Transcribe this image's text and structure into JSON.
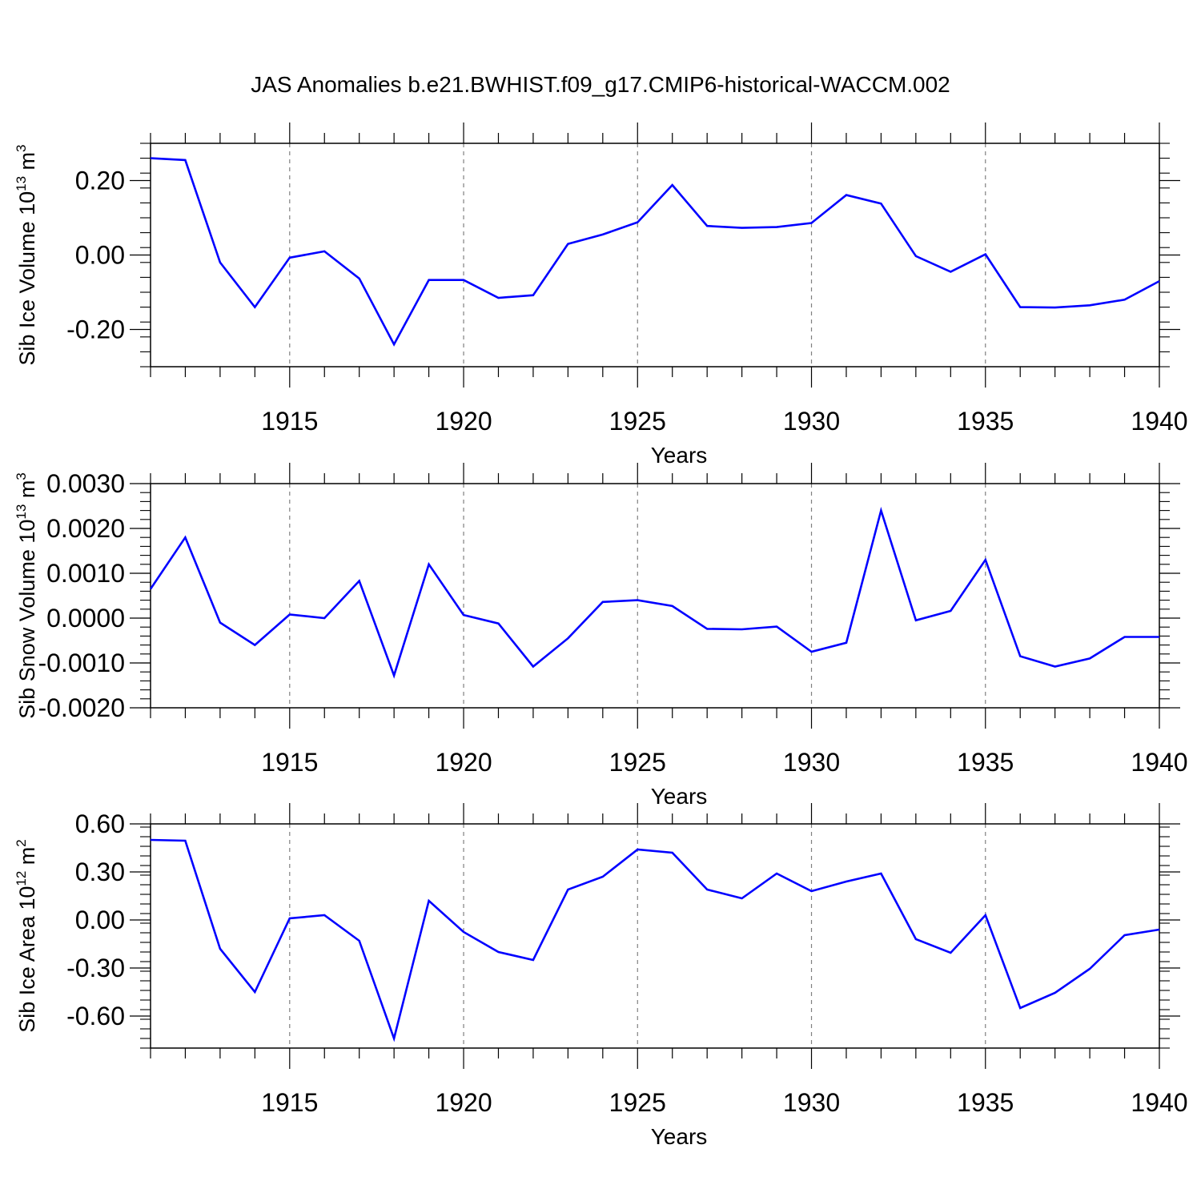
{
  "title": "JAS Anomalies b.e21.BWHIST.f09_g17.CMIP6-historical-WACCM.002",
  "colors": {
    "line": "#0000ff",
    "axis": "#000000",
    "grid": "#808080"
  },
  "chart_data": [
    {
      "type": "line",
      "ylabel": "Sib Ice Volume 10",
      "ylabel_sup": "13",
      "ylabel_unit": "m",
      "ylabel_unit_sup": "3",
      "xlabel": "Years",
      "xlim": [
        1911,
        1940
      ],
      "ylim": [
        -0.3,
        0.3
      ],
      "xticks": [
        1915,
        1920,
        1925,
        1930,
        1935,
        1940
      ],
      "yticks": [
        0.2,
        0.0,
        -0.2
      ],
      "ytick_labels": [
        "0.20",
        "0.00",
        "-0.20"
      ],
      "grid": "vertical dashed at major x ticks",
      "x": [
        1911,
        1912,
        1913,
        1914,
        1915,
        1916,
        1917,
        1918,
        1919,
        1920,
        1921,
        1922,
        1923,
        1924,
        1925,
        1926,
        1927,
        1928,
        1929,
        1930,
        1931,
        1932,
        1933,
        1934,
        1935,
        1936,
        1937,
        1938,
        1939,
        1940
      ],
      "values": [
        0.26,
        0.255,
        -0.02,
        -0.14,
        -0.007,
        0.01,
        -0.063,
        -0.24,
        -0.067,
        -0.067,
        -0.115,
        -0.108,
        0.03,
        0.055,
        0.088,
        0.188,
        0.078,
        0.073,
        0.075,
        0.086,
        0.161,
        0.138,
        -0.003,
        -0.045,
        0.002,
        -0.14,
        -0.141,
        -0.135,
        -0.12,
        -0.07
      ]
    },
    {
      "type": "line",
      "ylabel": "Sib Snow Volume 10",
      "ylabel_sup": "13",
      "ylabel_unit": "m",
      "ylabel_unit_sup": "3",
      "xlabel": "Years",
      "xlim": [
        1911,
        1940
      ],
      "ylim": [
        -0.002,
        0.003
      ],
      "xticks": [
        1915,
        1920,
        1925,
        1930,
        1935,
        1940
      ],
      "yticks": [
        0.003,
        0.002,
        0.001,
        0.0,
        -0.001,
        -0.002
      ],
      "ytick_labels": [
        "0.0030",
        "0.0020",
        "0.0010",
        "0.0000",
        "-0.0010",
        "-0.0020"
      ],
      "grid": "vertical dashed at major x ticks",
      "x": [
        1911,
        1912,
        1913,
        1914,
        1915,
        1916,
        1917,
        1918,
        1919,
        1920,
        1921,
        1922,
        1923,
        1924,
        1925,
        1926,
        1927,
        1928,
        1929,
        1930,
        1931,
        1932,
        1933,
        1934,
        1935,
        1936,
        1937,
        1938,
        1939,
        1940
      ],
      "values": [
        0.00065,
        0.0018,
        -0.0001,
        -0.0006,
        8e-05,
        0.0,
        0.00083,
        -0.00128,
        0.0012,
        7e-05,
        -0.00012,
        -0.00108,
        -0.00045,
        0.00036,
        0.0004,
        0.00027,
        -0.00024,
        -0.00025,
        -0.00019,
        -0.00075,
        -0.00055,
        0.0024,
        -5e-05,
        0.00016,
        0.0013,
        -0.00085,
        -0.00108,
        -0.0009,
        -0.00042,
        -0.00042
      ]
    },
    {
      "type": "line",
      "ylabel": "Sib Ice Area 10",
      "ylabel_sup": "12",
      "ylabel_unit": "m",
      "ylabel_unit_sup": "2",
      "xlabel": "Years",
      "xlim": [
        1911,
        1940
      ],
      "ylim": [
        -0.8,
        0.6
      ],
      "xticks": [
        1915,
        1920,
        1925,
        1930,
        1935,
        1940
      ],
      "yticks": [
        0.6,
        0.3,
        0.0,
        -0.3,
        -0.6
      ],
      "ytick_labels": [
        "0.60",
        "0.30",
        "0.00",
        "-0.30",
        "-0.60"
      ],
      "grid": "vertical dashed at major x ticks",
      "x": [
        1911,
        1912,
        1913,
        1914,
        1915,
        1916,
        1917,
        1918,
        1919,
        1920,
        1921,
        1922,
        1923,
        1924,
        1925,
        1926,
        1927,
        1928,
        1929,
        1930,
        1931,
        1932,
        1933,
        1934,
        1935,
        1936,
        1937,
        1938,
        1939,
        1940
      ],
      "values": [
        0.5,
        0.495,
        -0.18,
        -0.45,
        0.01,
        0.03,
        -0.13,
        -0.74,
        0.12,
        -0.075,
        -0.2,
        -0.25,
        0.19,
        0.27,
        0.44,
        0.42,
        0.19,
        0.135,
        0.29,
        0.18,
        0.24,
        0.29,
        -0.12,
        -0.205,
        0.03,
        -0.55,
        -0.455,
        -0.305,
        -0.095,
        -0.06
      ]
    }
  ]
}
